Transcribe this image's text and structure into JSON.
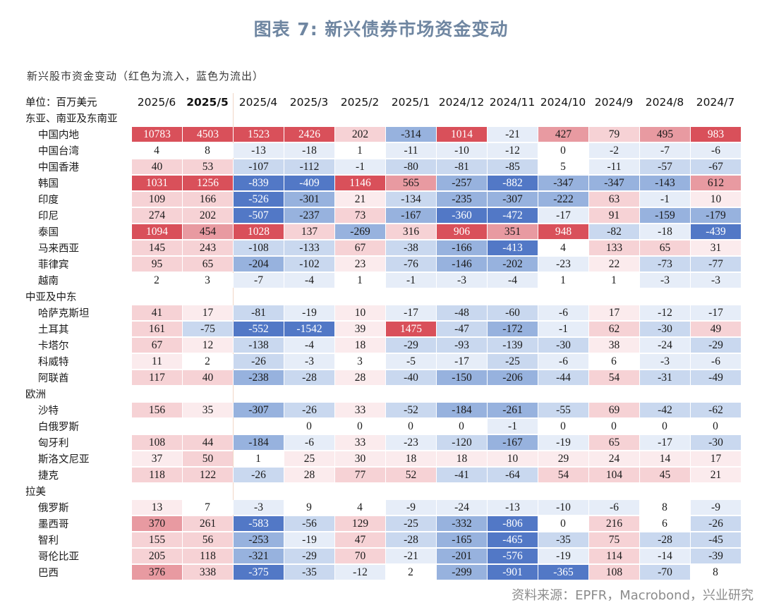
{
  "title": "图表 7:  新兴债券市场资金变动",
  "subtitle": "新兴股市资金变动（红色为流入，蓝色为流出）",
  "source": "资料来源：EPFR，Macrobond，兴业研究",
  "colors": {
    "pos_strong": "#d9505a",
    "pos_mid": "#e89aa1",
    "pos_light": "#f6d2d5",
    "pos_faint": "#fbebed",
    "neg_strong": "#5278c6",
    "neg_mid": "#97b2de",
    "neg_light": "#c9d8ef",
    "neg_faint": "#e6edf8",
    "title": "#6f86a1"
  },
  "chart_data": {
    "type": "table",
    "corner_label": "单位：百万美元",
    "columns": [
      "2025/6",
      "2025/5",
      "2025/4",
      "2025/3",
      "2025/2",
      "2025/1",
      "2024/12",
      "2024/11",
      "2024/10",
      "2024/9",
      "2024/8",
      "2024/7"
    ],
    "groups": [
      {
        "name": "东亚、南亚及东南亚",
        "rows": [
          {
            "name": "中国内地",
            "values": [
              10783,
              4503,
              1523,
              2426,
              202,
              -314,
              1014,
              -21,
              427,
              79,
              495,
              983
            ]
          },
          {
            "name": "中国台湾",
            "values": [
              4,
              8,
              -13,
              -18,
              1,
              -11,
              -10,
              -12,
              0,
              -2,
              -7,
              -6
            ]
          },
          {
            "name": "中国香港",
            "values": [
              40,
              53,
              -107,
              -112,
              -1,
              -80,
              -81,
              -85,
              5,
              -11,
              -57,
              -67
            ]
          },
          {
            "name": "韩国",
            "values": [
              1031,
              1256,
              -839,
              -409,
              1146,
              565,
              -257,
              -882,
              -347,
              -347,
              -143,
              612
            ]
          },
          {
            "name": "印度",
            "values": [
              109,
              166,
              -526,
              -301,
              21,
              -134,
              -235,
              -307,
              -222,
              63,
              -1,
              10
            ]
          },
          {
            "name": "印尼",
            "values": [
              274,
              202,
              -507,
              -237,
              73,
              -167,
              -360,
              -472,
              -17,
              91,
              -159,
              -179
            ]
          },
          {
            "name": "泰国",
            "values": [
              1094,
              454,
              1028,
              137,
              -269,
              316,
              906,
              351,
              948,
              -82,
              -18,
              -439
            ]
          },
          {
            "name": "马来西亚",
            "values": [
              145,
              243,
              -108,
              -133,
              67,
              -38,
              -166,
              -413,
              4,
              133,
              65,
              31
            ]
          },
          {
            "name": "菲律宾",
            "values": [
              95,
              65,
              -204,
              -102,
              23,
              -76,
              -146,
              -202,
              -23,
              22,
              -73,
              -77
            ]
          },
          {
            "name": "越南",
            "values": [
              2,
              3,
              -7,
              -4,
              1,
              -1,
              -3,
              -4,
              1,
              1,
              -3,
              -3
            ]
          }
        ]
      },
      {
        "name": "中亚及中东",
        "rows": [
          {
            "name": "哈萨克斯坦",
            "values": [
              41,
              17,
              -81,
              -19,
              10,
              -17,
              -48,
              -60,
              -6,
              17,
              -12,
              -17
            ]
          },
          {
            "name": "土耳其",
            "values": [
              161,
              -75,
              -552,
              -1542,
              39,
              1475,
              -47,
              -172,
              -1,
              62,
              -30,
              49
            ]
          },
          {
            "name": "卡塔尔",
            "values": [
              67,
              12,
              -138,
              -4,
              18,
              -29,
              -93,
              -139,
              -30,
              38,
              -24,
              -29
            ]
          },
          {
            "name": "科威特",
            "values": [
              11,
              2,
              -26,
              -3,
              3,
              -5,
              -17,
              -25,
              -6,
              6,
              -3,
              -6
            ]
          },
          {
            "name": "阿联酋",
            "values": [
              117,
              40,
              -238,
              -28,
              28,
              -40,
              -150,
              -206,
              -44,
              54,
              -31,
              -49
            ]
          }
        ]
      },
      {
        "name": "欧洲",
        "rows": [
          {
            "name": "沙特",
            "values": [
              156,
              35,
              -307,
              -26,
              33,
              -52,
              -184,
              -261,
              -55,
              69,
              -42,
              -62
            ]
          },
          {
            "name": "白俄罗斯",
            "values": [
              null,
              null,
              null,
              0,
              0,
              0,
              0,
              -1,
              0,
              0,
              0,
              0
            ]
          },
          {
            "name": "匈牙利",
            "values": [
              108,
              44,
              -184,
              -6,
              33,
              -23,
              -120,
              -167,
              -19,
              65,
              -17,
              -30
            ]
          },
          {
            "name": "斯洛文尼亚",
            "values": [
              37,
              50,
              1,
              25,
              30,
              18,
              18,
              10,
              29,
              24,
              14,
              17
            ]
          },
          {
            "name": "捷克",
            "values": [
              118,
              122,
              -26,
              28,
              77,
              52,
              -41,
              -64,
              54,
              104,
              45,
              21
            ]
          }
        ]
      },
      {
        "name": "拉美",
        "rows": [
          {
            "name": "俄罗斯",
            "values": [
              13,
              7,
              -3,
              9,
              4,
              -9,
              -24,
              -13,
              -10,
              -6,
              8,
              -9
            ]
          },
          {
            "name": "墨西哥",
            "values": [
              370,
              261,
              -583,
              -56,
              129,
              -25,
              -332,
              -806,
              0,
              216,
              6,
              -26
            ]
          },
          {
            "name": "智利",
            "values": [
              155,
              56,
              -253,
              -19,
              47,
              -28,
              -165,
              -465,
              -35,
              75,
              -28,
              -45
            ]
          },
          {
            "name": "哥伦比亚",
            "values": [
              205,
              118,
              -321,
              -29,
              70,
              -21,
              -201,
              -576,
              -19,
              114,
              -14,
              -39
            ]
          },
          {
            "name": "巴西",
            "values": [
              376,
              338,
              -375,
              -35,
              -12,
              2,
              -299,
              -901,
              -365,
              108,
              -70,
              8
            ]
          }
        ]
      }
    ]
  }
}
